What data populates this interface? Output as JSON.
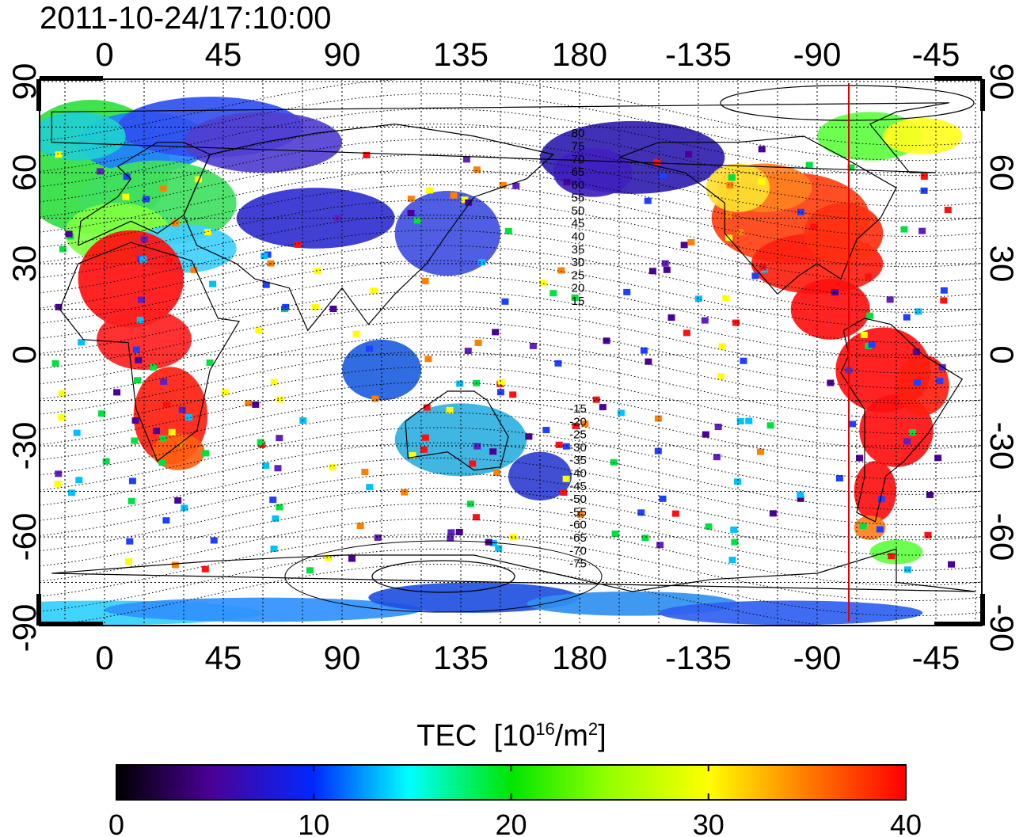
{
  "title": "2011-10-24/17:10:00",
  "map": {
    "top_ticks": [
      "0",
      "45",
      "90",
      "135",
      "180",
      "-135",
      "-90",
      "-45"
    ],
    "bottom_ticks": [
      "0",
      "45",
      "90",
      "135",
      "180",
      "-135",
      "-90",
      "-45"
    ],
    "left_ticks": [
      "90",
      "60",
      "30",
      "0",
      "-30",
      "-60",
      "-90"
    ],
    "right_ticks": [
      "90",
      "60",
      "30",
      "0",
      "-30",
      "-60",
      "-90"
    ],
    "contour_labels": [
      "80",
      "75",
      "70",
      "65",
      "60",
      "55",
      "50",
      "45",
      "40",
      "35",
      "30",
      "25",
      "20",
      "15",
      "-15",
      "-20",
      "-25",
      "-30",
      "-35",
      "-40",
      "-45",
      "-50",
      "-55",
      "-60",
      "-65",
      "-70",
      "-75"
    ],
    "red_line_longitude": -78
  },
  "colorbar": {
    "title_main": "TEC",
    "title_unit_a": "[10",
    "title_unit_sup": "16",
    "title_unit_b": "/m",
    "title_unit_sup2": "2",
    "title_unit_c": "]",
    "ticks": [
      "0",
      "10",
      "20",
      "30",
      "40"
    ],
    "range": [
      0,
      40
    ]
  },
  "colors": {
    "low": "#000000",
    "purple": "#4b0096",
    "blue": "#0028ff",
    "cyan": "#00ffff",
    "green": "#00e600",
    "yellow": "#ffff00",
    "orange": "#ff8000",
    "high": "#ff0000",
    "red_line": "#e00000"
  }
}
